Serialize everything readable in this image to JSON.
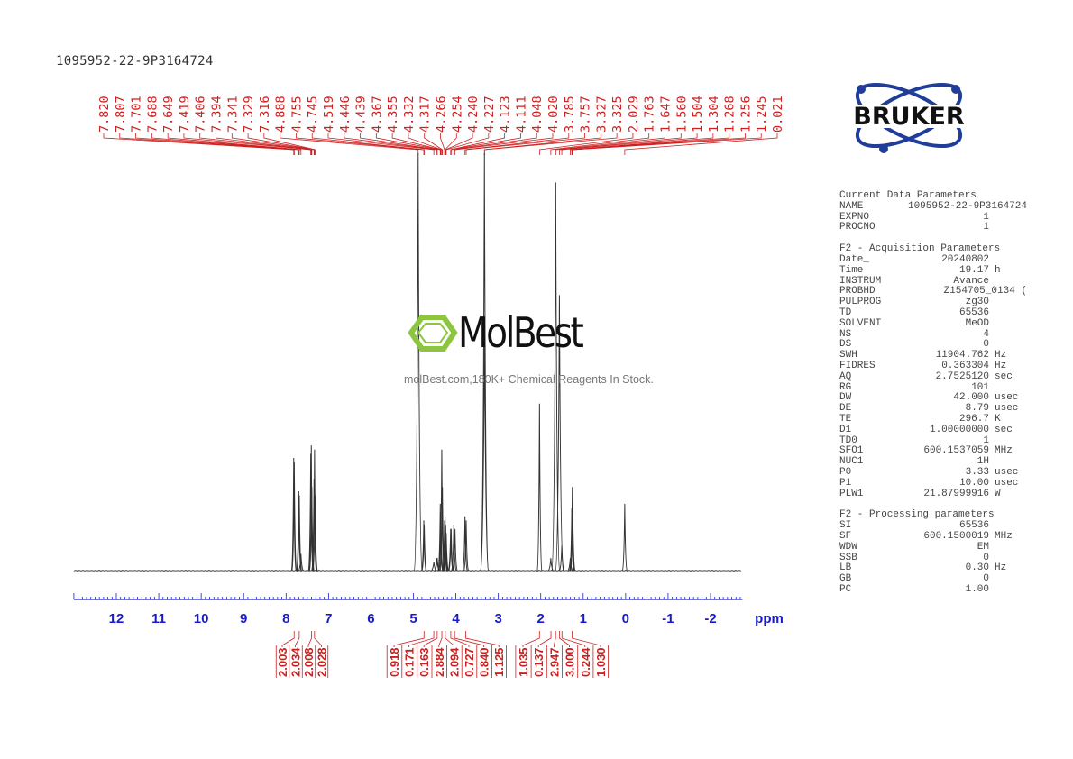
{
  "header": {
    "sample_id": "1095952-22-9P3164724"
  },
  "logo": {
    "brand": "BRUKER"
  },
  "watermark": {
    "name": "MolBest",
    "tagline": "molBest.com,180K+ Chemical Reagents In Stock.",
    "color": "#8cc63f"
  },
  "parameters": {
    "current_title": "Current Data Parameters",
    "current": [
      {
        "key": "NAME",
        "value": "1095952-22-9P3164724",
        "unit": ""
      },
      {
        "key": "EXPNO",
        "value": "1",
        "unit": ""
      },
      {
        "key": "PROCNO",
        "value": "1",
        "unit": ""
      }
    ],
    "acq_title": "F2 - Acquisition Parameters",
    "acquisition": [
      {
        "key": "Date_",
        "value": "20240802",
        "unit": ""
      },
      {
        "key": "Time",
        "value": "19.17",
        "unit": "h"
      },
      {
        "key": "INSTRUM",
        "value": "Avance",
        "unit": ""
      },
      {
        "key": "PROBHD",
        "value": "Z154705_0134 (",
        "unit": ""
      },
      {
        "key": "PULPROG",
        "value": "zg30",
        "unit": ""
      },
      {
        "key": "TD",
        "value": "65536",
        "unit": ""
      },
      {
        "key": "SOLVENT",
        "value": "MeOD",
        "unit": ""
      },
      {
        "key": "NS",
        "value": "4",
        "unit": ""
      },
      {
        "key": "DS",
        "value": "0",
        "unit": ""
      },
      {
        "key": "SWH",
        "value": "11904.762",
        "unit": "Hz"
      },
      {
        "key": "FIDRES",
        "value": "0.363304",
        "unit": "Hz"
      },
      {
        "key": "AQ",
        "value": "2.7525120",
        "unit": "sec"
      },
      {
        "key": "RG",
        "value": "101",
        "unit": ""
      },
      {
        "key": "DW",
        "value": "42.000",
        "unit": "usec"
      },
      {
        "key": "DE",
        "value": "8.79",
        "unit": "usec"
      },
      {
        "key": "TE",
        "value": "296.7",
        "unit": "K"
      },
      {
        "key": "D1",
        "value": "1.00000000",
        "unit": "sec"
      },
      {
        "key": "TD0",
        "value": "1",
        "unit": ""
      },
      {
        "key": "SFO1",
        "value": "600.1537059",
        "unit": "MHz"
      },
      {
        "key": "NUC1",
        "value": "1H",
        "unit": ""
      },
      {
        "key": "P0",
        "value": "3.33",
        "unit": "usec"
      },
      {
        "key": "P1",
        "value": "10.00",
        "unit": "usec"
      },
      {
        "key": "PLW1",
        "value": "21.87999916",
        "unit": "W"
      }
    ],
    "proc_title": "F2 - Processing parameters",
    "processing": [
      {
        "key": "SI",
        "value": "65536",
        "unit": ""
      },
      {
        "key": "SF",
        "value": "600.1500019",
        "unit": "MHz"
      },
      {
        "key": "WDW",
        "value": "EM",
        "unit": ""
      },
      {
        "key": "SSB",
        "value": "0",
        "unit": ""
      },
      {
        "key": "LB",
        "value": "0.30",
        "unit": "Hz"
      },
      {
        "key": "GB",
        "value": "0",
        "unit": ""
      },
      {
        "key": "PC",
        "value": "1.00",
        "unit": ""
      }
    ]
  },
  "chart_data": {
    "type": "line",
    "xlabel": "ppm",
    "xlim": [
      13,
      -2.75
    ],
    "x_reversed": true,
    "x_ticks": [
      "12",
      "11",
      "10",
      "9",
      "8",
      "7",
      "6",
      "5",
      "4",
      "3",
      "2",
      "1",
      "0",
      "-1",
      "-2"
    ],
    "colors": {
      "spectrum": "#333333",
      "annotation": "#cc1f1f",
      "axis": "#1a1acc"
    },
    "peak_labels": [
      "7.820",
      "7.807",
      "7.701",
      "7.688",
      "7.649",
      "7.419",
      "7.406",
      "7.394",
      "7.341",
      "7.329",
      "7.316",
      "4.888",
      "4.755",
      "4.745",
      "4.519",
      "4.446",
      "4.439",
      "4.367",
      "4.355",
      "4.332",
      "4.317",
      "4.266",
      "4.254",
      "4.240",
      "4.227",
      "4.123",
      "4.111",
      "4.048",
      "4.020",
      "3.785",
      "3.757",
      "3.327",
      "3.325",
      "2.029",
      "1.763",
      "1.647",
      "1.560",
      "1.504",
      "1.304",
      "1.268",
      "1.256",
      "1.245",
      "0.021"
    ],
    "peaks": [
      {
        "ppm": 7.82,
        "intensity": 27
      },
      {
        "ppm": 7.807,
        "intensity": 26
      },
      {
        "ppm": 7.701,
        "intensity": 19
      },
      {
        "ppm": 7.688,
        "intensity": 18
      },
      {
        "ppm": 7.649,
        "intensity": 4
      },
      {
        "ppm": 7.419,
        "intensity": 28
      },
      {
        "ppm": 7.406,
        "intensity": 30
      },
      {
        "ppm": 7.394,
        "intensity": 20
      },
      {
        "ppm": 7.341,
        "intensity": 22
      },
      {
        "ppm": 7.329,
        "intensity": 29
      },
      {
        "ppm": 7.316,
        "intensity": 18
      },
      {
        "ppm": 4.888,
        "intensity": 100
      },
      {
        "ppm": 4.755,
        "intensity": 12
      },
      {
        "ppm": 4.745,
        "intensity": 11
      },
      {
        "ppm": 4.519,
        "intensity": 2
      },
      {
        "ppm": 4.446,
        "intensity": 3
      },
      {
        "ppm": 4.439,
        "intensity": 3
      },
      {
        "ppm": 4.367,
        "intensity": 16
      },
      {
        "ppm": 4.355,
        "intensity": 14
      },
      {
        "ppm": 4.332,
        "intensity": 29
      },
      {
        "ppm": 4.317,
        "intensity": 20
      },
      {
        "ppm": 4.266,
        "intensity": 12
      },
      {
        "ppm": 4.254,
        "intensity": 13
      },
      {
        "ppm": 4.24,
        "intensity": 11
      },
      {
        "ppm": 4.227,
        "intensity": 9
      },
      {
        "ppm": 4.123,
        "intensity": 10
      },
      {
        "ppm": 4.111,
        "intensity": 10
      },
      {
        "ppm": 4.048,
        "intensity": 11
      },
      {
        "ppm": 4.02,
        "intensity": 10
      },
      {
        "ppm": 3.785,
        "intensity": 13
      },
      {
        "ppm": 3.757,
        "intensity": 12
      },
      {
        "ppm": 3.327,
        "intensity": 100
      },
      {
        "ppm": 3.325,
        "intensity": 60
      },
      {
        "ppm": 2.029,
        "intensity": 40
      },
      {
        "ppm": 1.763,
        "intensity": 3
      },
      {
        "ppm": 1.647,
        "intensity": 93
      },
      {
        "ppm": 1.56,
        "intensity": 66
      },
      {
        "ppm": 1.504,
        "intensity": 6
      },
      {
        "ppm": 1.304,
        "intensity": 3
      },
      {
        "ppm": 1.268,
        "intensity": 15
      },
      {
        "ppm": 1.256,
        "intensity": 20
      },
      {
        "ppm": 1.245,
        "intensity": 14
      },
      {
        "ppm": 0.021,
        "intensity": 16
      }
    ],
    "integrals": [
      {
        "ppm": 7.81,
        "value": "2.003"
      },
      {
        "ppm": 7.69,
        "value": "2.034"
      },
      {
        "ppm": 7.4,
        "value": "2.008"
      },
      {
        "ppm": 7.33,
        "value": "2.028"
      },
      {
        "ppm": 4.75,
        "value": "0.918"
      },
      {
        "ppm": 4.52,
        "value": "0.171"
      },
      {
        "ppm": 4.44,
        "value": "0.163"
      },
      {
        "ppm": 4.33,
        "value": "2.884"
      },
      {
        "ppm": 4.25,
        "value": "2.094"
      },
      {
        "ppm": 4.12,
        "value": "0.727"
      },
      {
        "ppm": 4.03,
        "value": "0.840"
      },
      {
        "ppm": 3.77,
        "value": "1.125"
      },
      {
        "ppm": 2.03,
        "value": "1.035"
      },
      {
        "ppm": 1.76,
        "value": "0.137"
      },
      {
        "ppm": 1.65,
        "value": "2.947"
      },
      {
        "ppm": 1.56,
        "value": "3.000"
      },
      {
        "ppm": 1.5,
        "value": "0.244"
      },
      {
        "ppm": 1.26,
        "value": "1.030"
      }
    ]
  }
}
